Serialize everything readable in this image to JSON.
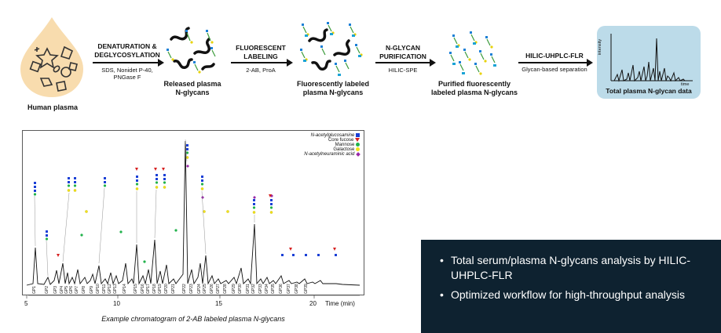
{
  "workflow": {
    "start_label": "Human plasma",
    "steps": [
      {
        "title": "DENATURATION &\nDEGLYCOSYLATION",
        "sub": "SDS, Nonidet P-40,\nPNGase F"
      },
      {
        "title": "FLUORESCENT\nLABELING",
        "sub": "2-AB, ProA"
      },
      {
        "title": "N-GLYCAN\nPURIFICATION",
        "sub": "HILIC-SPE"
      },
      {
        "title": "HILIC-UHPLC-FLR",
        "sub": "Glycan-based separation"
      }
    ],
    "stages": [
      "Released plasma\nN-glycans",
      "Fluorescently labeled\nplasma N-glycans",
      "Purified fluorescently\nlabeled plasma N-glycans"
    ],
    "result": {
      "label": "Total plasma N-glycan data",
      "y_axis": "intensity",
      "x_axis": "time",
      "bg_color": "#bcdbe9"
    }
  },
  "chromatogram": {
    "caption": "Example chromatogram of 2-AB labeled plasma N-glycans",
    "x_axis_label": "Time (min)",
    "x_ticks": [
      "5",
      "10",
      "15",
      "20"
    ],
    "peaks": [
      "GP1",
      "GP2",
      "GP3",
      "GP4",
      "GP5",
      "GP6",
      "GP7",
      "GP8",
      "GP9",
      "GP10",
      "GP11",
      "GP12",
      "GP13",
      "GP14",
      "GP15",
      "GP16",
      "GP17",
      "GP18",
      "GP19",
      "GP20",
      "GP21",
      "GP22",
      "GP23",
      "GP24",
      "GP25",
      "GP26",
      "GP27",
      "GP28",
      "GP29",
      "GP30",
      "GP31",
      "GP32",
      "GP33",
      "GP34",
      "GP35",
      "GP36",
      "GP37",
      "GP38",
      "GP39"
    ],
    "legend": [
      {
        "name": "N-acetylglucosamine",
        "color": "#1a3fd6",
        "shape": "square-icon"
      },
      {
        "name": "Core fucose",
        "color": "#d62020",
        "shape": "triangle-icon"
      },
      {
        "name": "Mannose",
        "color": "#22b24c",
        "shape": "circle-icon"
      },
      {
        "name": "Galactose",
        "color": "#f2e21a",
        "shape": "circle-icon"
      },
      {
        "name": "N-acetylneuraminic acid",
        "color": "#9a2aa8",
        "shape": "diamond-icon"
      }
    ]
  },
  "info": {
    "bullets": [
      "Total serum/plasma N-glycans analysis by HILIC-UHPLC-FLR",
      "Optimized workflow for high-throughput analysis"
    ],
    "bg_color": "#0e2230"
  }
}
